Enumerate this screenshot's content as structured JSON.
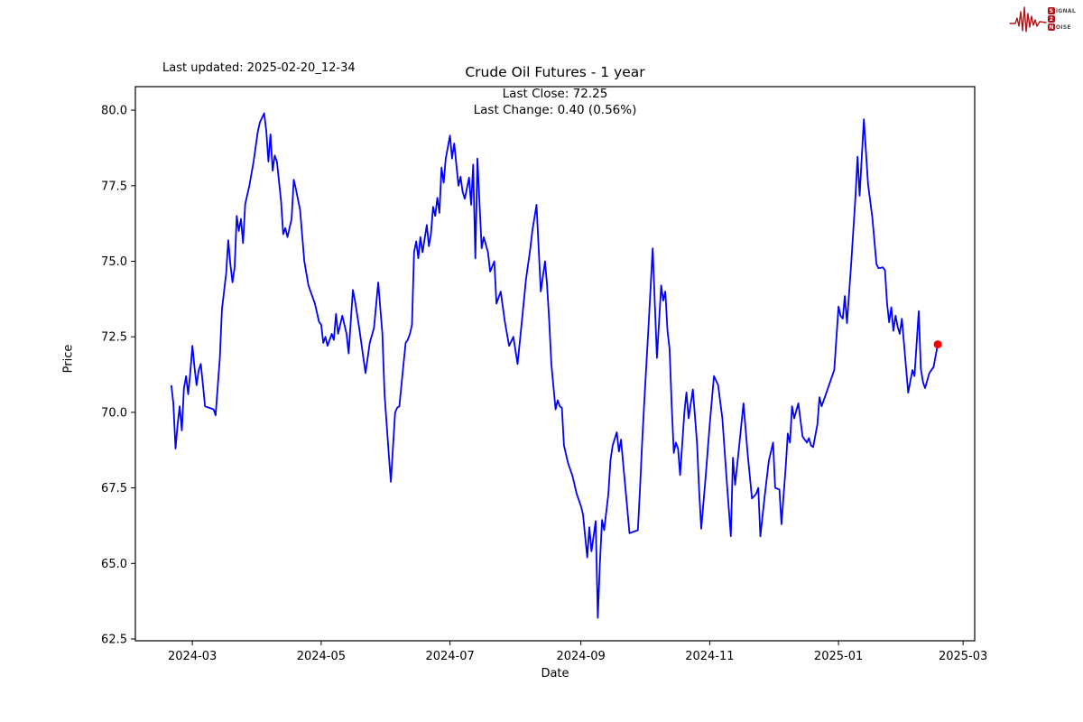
{
  "header": {
    "last_updated": "Last updated: 2025-02-20_12-34",
    "title": "Crude Oil Futures - 1 year",
    "annotation_line1": "Last Close: 72.25",
    "annotation_line2": "Last Change: 0.40 (0.56%)"
  },
  "logo": {
    "color": "#b01217",
    "letter_color": "#4a4a4a",
    "word1_initial": "S",
    "word1_rest": "IGNAL",
    "word2_initial": "2",
    "word2_rest": "",
    "word3_initial": "N",
    "word3_rest": "OISE"
  },
  "chart_data": {
    "type": "line",
    "title": "Crude Oil Futures - 1 year",
    "xlabel": "Date",
    "ylabel": "Price",
    "legend": "none",
    "grid": false,
    "line_color": "#0000ff",
    "last_point_color": "#ff0000",
    "last_close": 72.25,
    "last_change_text": "0.40 (0.56%)",
    "x_start_date": "2024-02-20",
    "xlim_days": [
      -17,
      380.5
    ],
    "ylim": [
      62.44,
      80.78
    ],
    "yticks": [
      80.0,
      77.5,
      75.0,
      72.5,
      70.0,
      67.5,
      65.0,
      62.5
    ],
    "ytick_labels": [
      "80.0",
      "77.5",
      "75.0",
      "72.5",
      "70.0",
      "67.5",
      "65.0",
      "62.5"
    ],
    "xticks_days": [
      10,
      71,
      132,
      194,
      255,
      316,
      375
    ],
    "xtick_labels": [
      "2024-03",
      "2024-05",
      "2024-07",
      "2024-09",
      "2024-11",
      "2025-01",
      "2025-03"
    ],
    "points": [
      [
        0,
        70.9
      ],
      [
        1,
        70.3
      ],
      [
        2,
        68.8
      ],
      [
        3,
        69.6
      ],
      [
        4,
        70.2
      ],
      [
        5,
        69.4
      ],
      [
        6,
        70.8
      ],
      [
        7,
        71.2
      ],
      [
        8,
        70.6
      ],
      [
        9,
        71.3
      ],
      [
        10,
        72.2
      ],
      [
        11,
        71.5
      ],
      [
        12,
        70.9
      ],
      [
        13,
        71.4
      ],
      [
        14,
        71.6
      ],
      [
        15,
        70.9
      ],
      [
        16,
        70.2
      ],
      [
        18,
        70.15
      ],
      [
        20,
        70.1
      ],
      [
        21,
        69.9
      ],
      [
        23,
        71.8
      ],
      [
        24,
        73.4
      ],
      [
        26,
        74.6
      ],
      [
        27,
        75.7
      ],
      [
        28,
        74.9
      ],
      [
        29,
        74.3
      ],
      [
        30,
        74.8
      ],
      [
        31,
        76.5
      ],
      [
        32,
        76.0
      ],
      [
        33,
        76.4
      ],
      [
        34,
        75.6
      ],
      [
        35,
        76.9
      ],
      [
        37,
        77.5
      ],
      [
        39,
        78.3
      ],
      [
        41,
        79.3
      ],
      [
        42,
        79.6
      ],
      [
        44,
        79.9
      ],
      [
        45,
        79.3
      ],
      [
        46,
        78.3
      ],
      [
        47,
        79.2
      ],
      [
        48,
        78.0
      ],
      [
        49,
        78.5
      ],
      [
        50,
        78.3
      ],
      [
        52,
        77.0
      ],
      [
        53,
        75.9
      ],
      [
        54,
        76.1
      ],
      [
        55,
        75.8
      ],
      [
        57,
        76.4
      ],
      [
        58,
        77.7
      ],
      [
        59,
        77.4
      ],
      [
        61,
        76.7
      ],
      [
        63,
        75.0
      ],
      [
        65,
        74.2
      ],
      [
        68,
        73.6
      ],
      [
        70,
        73.0
      ],
      [
        71,
        72.9
      ],
      [
        72,
        72.3
      ],
      [
        73,
        72.5
      ],
      [
        74,
        72.2
      ],
      [
        76,
        72.6
      ],
      [
        77,
        72.4
      ],
      [
        78,
        73.26
      ],
      [
        79,
        72.6
      ],
      [
        81,
        73.2
      ],
      [
        83,
        72.6
      ],
      [
        84,
        71.95
      ],
      [
        86,
        74.05
      ],
      [
        87,
        73.7
      ],
      [
        89,
        72.8
      ],
      [
        92,
        71.3
      ],
      [
        94,
        72.3
      ],
      [
        96,
        72.8
      ],
      [
        98,
        74.3
      ],
      [
        100,
        72.6
      ],
      [
        101,
        70.6
      ],
      [
        103,
        68.6
      ],
      [
        104,
        67.7
      ],
      [
        106,
        70.0
      ],
      [
        107,
        70.15
      ],
      [
        108,
        70.2
      ],
      [
        110,
        71.6
      ],
      [
        111,
        72.3
      ],
      [
        112,
        72.4
      ],
      [
        113,
        72.6
      ],
      [
        114,
        72.9
      ],
      [
        115,
        75.3
      ],
      [
        116,
        75.66
      ],
      [
        117,
        75.1
      ],
      [
        118,
        75.8
      ],
      [
        119,
        75.3
      ],
      [
        121,
        76.2
      ],
      [
        122,
        75.5
      ],
      [
        123,
        75.9
      ],
      [
        124,
        76.8
      ],
      [
        125,
        76.5
      ],
      [
        126,
        77.1
      ],
      [
        127,
        76.6
      ],
      [
        128,
        78.1
      ],
      [
        129,
        77.6
      ],
      [
        130,
        78.4
      ],
      [
        132,
        79.16
      ],
      [
        133,
        78.4
      ],
      [
        134,
        78.9
      ],
      [
        136,
        77.5
      ],
      [
        137,
        77.8
      ],
      [
        138,
        77.3
      ],
      [
        139,
        77.07
      ],
      [
        141,
        77.77
      ],
      [
        142,
        76.87
      ],
      [
        143,
        78.2
      ],
      [
        144,
        75.1
      ],
      [
        145,
        78.4
      ],
      [
        147,
        75.43
      ],
      [
        148,
        75.8
      ],
      [
        150,
        75.3
      ],
      [
        151,
        74.66
      ],
      [
        153,
        75.0
      ],
      [
        154,
        73.6
      ],
      [
        156,
        74.0
      ],
      [
        158,
        73.0
      ],
      [
        160,
        72.2
      ],
      [
        162,
        72.5
      ],
      [
        164,
        71.6
      ],
      [
        166,
        73.0
      ],
      [
        168,
        74.4
      ],
      [
        170,
        75.4
      ],
      [
        171,
        76.0
      ],
      [
        173,
        76.87
      ],
      [
        175,
        74.0
      ],
      [
        177,
        75.0
      ],
      [
        178,
        74.2
      ],
      [
        179,
        73.0
      ],
      [
        180,
        71.6
      ],
      [
        182,
        70.1
      ],
      [
        183,
        70.4
      ],
      [
        184,
        70.2
      ],
      [
        185,
        70.15
      ],
      [
        186,
        68.9
      ],
      [
        188,
        68.3
      ],
      [
        190,
        67.9
      ],
      [
        192,
        67.3
      ],
      [
        194,
        66.9
      ],
      [
        195,
        66.62
      ],
      [
        197,
        65.2
      ],
      [
        198,
        66.2
      ],
      [
        199,
        65.4
      ],
      [
        200,
        65.9
      ],
      [
        201,
        66.4
      ],
      [
        202,
        63.2
      ],
      [
        203,
        65.0
      ],
      [
        204,
        66.44
      ],
      [
        205,
        66.1
      ],
      [
        207,
        67.3
      ],
      [
        208,
        68.4
      ],
      [
        209,
        68.9
      ],
      [
        211,
        69.34
      ],
      [
        212,
        68.7
      ],
      [
        213,
        69.1
      ],
      [
        214,
        68.3
      ],
      [
        216,
        66.8
      ],
      [
        217,
        66.0
      ],
      [
        219,
        66.05
      ],
      [
        221,
        66.1
      ],
      [
        222,
        67.5
      ],
      [
        223,
        69.0
      ],
      [
        224,
        70.3
      ],
      [
        226,
        72.8
      ],
      [
        228,
        75.43
      ],
      [
        230,
        71.8
      ],
      [
        232,
        74.2
      ],
      [
        233,
        73.7
      ],
      [
        234,
        74.0
      ],
      [
        235,
        72.7
      ],
      [
        236,
        72.1
      ],
      [
        237,
        70.2
      ],
      [
        238,
        68.66
      ],
      [
        239,
        69.0
      ],
      [
        240,
        68.8
      ],
      [
        241,
        67.92
      ],
      [
        243,
        70.0
      ],
      [
        244,
        70.66
      ],
      [
        245,
        69.8
      ],
      [
        247,
        70.76
      ],
      [
        249,
        69.0
      ],
      [
        250,
        67.4
      ],
      [
        251,
        66.15
      ],
      [
        253,
        67.8
      ],
      [
        255,
        69.6
      ],
      [
        257,
        71.2
      ],
      [
        259,
        70.9
      ],
      [
        261,
        69.8
      ],
      [
        263,
        67.8
      ],
      [
        265,
        65.9
      ],
      [
        266,
        68.5
      ],
      [
        267,
        67.6
      ],
      [
        269,
        68.9
      ],
      [
        271,
        70.3
      ],
      [
        273,
        68.6
      ],
      [
        274,
        67.9
      ],
      [
        275,
        67.15
      ],
      [
        277,
        67.3
      ],
      [
        278,
        67.5
      ],
      [
        279,
        65.9
      ],
      [
        281,
        67.2
      ],
      [
        283,
        68.4
      ],
      [
        285,
        69.0
      ],
      [
        286,
        67.5
      ],
      [
        288,
        67.45
      ],
      [
        289,
        66.3
      ],
      [
        291,
        68.2
      ],
      [
        292,
        69.3
      ],
      [
        293,
        69.0
      ],
      [
        294,
        70.2
      ],
      [
        295,
        69.8
      ],
      [
        297,
        70.3
      ],
      [
        299,
        69.2
      ],
      [
        301,
        69.0
      ],
      [
        302,
        69.15
      ],
      [
        303,
        68.9
      ],
      [
        304,
        68.85
      ],
      [
        306,
        69.6
      ],
      [
        307,
        70.5
      ],
      [
        308,
        70.2
      ],
      [
        310,
        70.6
      ],
      [
        312,
        71.0
      ],
      [
        314,
        71.4
      ],
      [
        316,
        73.5
      ],
      [
        317,
        73.2
      ],
      [
        318,
        73.1
      ],
      [
        319,
        73.85
      ],
      [
        320,
        72.95
      ],
      [
        322,
        74.9
      ],
      [
        324,
        77.1
      ],
      [
        325,
        78.46
      ],
      [
        326,
        77.17
      ],
      [
        328,
        79.7
      ],
      [
        330,
        77.56
      ],
      [
        332,
        76.47
      ],
      [
        334,
        74.9
      ],
      [
        335,
        74.77
      ],
      [
        337,
        74.8
      ],
      [
        338,
        74.7
      ],
      [
        339,
        73.6
      ],
      [
        340,
        72.98
      ],
      [
        341,
        73.48
      ],
      [
        342,
        72.7
      ],
      [
        343,
        73.2
      ],
      [
        344,
        72.84
      ],
      [
        345,
        72.6
      ],
      [
        346,
        73.1
      ],
      [
        349,
        70.65
      ],
      [
        351,
        71.4
      ],
      [
        352,
        71.2
      ],
      [
        354,
        73.35
      ],
      [
        355,
        71.45
      ],
      [
        356,
        71.0
      ],
      [
        357,
        70.8
      ],
      [
        359,
        71.3
      ],
      [
        361,
        71.5
      ],
      [
        363,
        72.25
      ]
    ]
  }
}
